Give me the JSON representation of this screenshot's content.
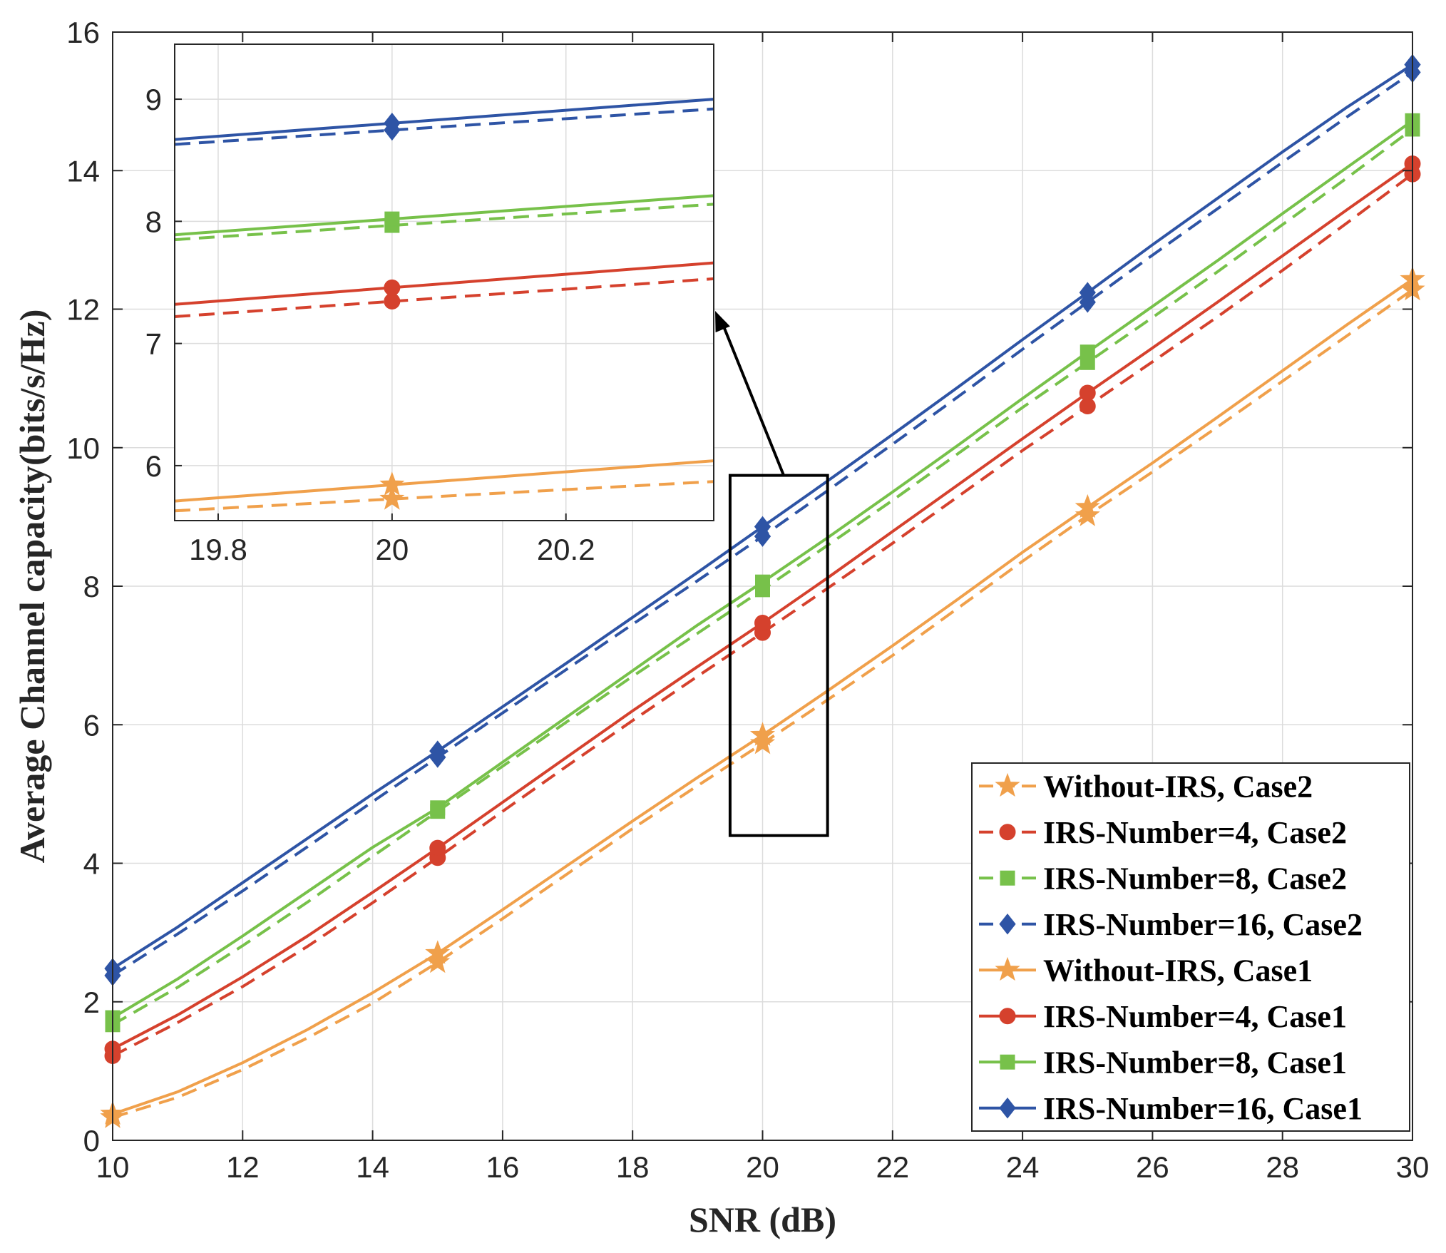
{
  "chart_data": {
    "type": "line",
    "title": "",
    "xlabel": "SNR (dB)",
    "ylabel": "Average Channel capacity(bits/s/Hz)",
    "xlim": [
      10,
      30
    ],
    "ylim": [
      0,
      16
    ],
    "xticks": [
      "10",
      "12",
      "14",
      "16",
      "18",
      "20",
      "22",
      "24",
      "26",
      "28",
      "30"
    ],
    "yticks": [
      "0",
      "2",
      "4",
      "6",
      "8",
      "10",
      "12",
      "14",
      "16"
    ],
    "grid": true,
    "legend_position": "bottom-right",
    "x": [
      10,
      11,
      12,
      13,
      14,
      15,
      16,
      17,
      18,
      19,
      20,
      21,
      22,
      23,
      24,
      25,
      26,
      27,
      28,
      29,
      30
    ],
    "marker_x": [
      10,
      15,
      20,
      25,
      30
    ],
    "series": [
      {
        "name": "Without-IRS, Case2",
        "style": "dashed",
        "marker": "star",
        "color": "#F0A04B",
        "values": [
          0.33,
          0.62,
          1.02,
          1.48,
          1.98,
          2.57,
          3.2,
          3.85,
          4.5,
          5.12,
          5.73,
          6.36,
          7.0,
          7.68,
          8.36,
          9.02,
          9.65,
          10.3,
          10.96,
          11.62,
          12.28
        ]
      },
      {
        "name": "IRS-Number=4, Case2",
        "style": "dashed",
        "marker": "circle",
        "color": "#D5412D",
        "values": [
          1.22,
          1.7,
          2.22,
          2.8,
          3.43,
          4.08,
          4.75,
          5.41,
          6.06,
          6.7,
          7.33,
          7.97,
          8.62,
          9.29,
          9.96,
          10.6,
          11.24,
          11.89,
          12.56,
          13.25,
          13.95
        ]
      },
      {
        "name": "IRS-Number=8, Case2",
        "style": "dashed",
        "marker": "square",
        "color": "#77C14A",
        "values": [
          1.67,
          2.21,
          2.81,
          3.44,
          4.1,
          4.75,
          5.4,
          6.05,
          6.7,
          7.32,
          7.95,
          8.59,
          9.24,
          9.91,
          10.58,
          11.23,
          11.88,
          12.54,
          13.22,
          13.9,
          14.6
        ]
      },
      {
        "name": "IRS-Number=16, Case2",
        "style": "dashed",
        "marker": "diamond",
        "color": "#2E54A5",
        "values": [
          2.38,
          2.98,
          3.6,
          4.24,
          4.89,
          5.53,
          6.17,
          6.81,
          7.45,
          8.08,
          8.72,
          9.38,
          10.05,
          10.73,
          11.42,
          12.1,
          12.78,
          13.45,
          14.12,
          14.78,
          15.42
        ]
      },
      {
        "name": "Without-IRS, Case1",
        "style": "solid",
        "marker": "star",
        "color": "#F0A04B",
        "values": [
          0.38,
          0.7,
          1.12,
          1.6,
          2.13,
          2.7,
          3.33,
          3.97,
          4.61,
          5.24,
          5.85,
          6.49,
          7.14,
          7.81,
          8.49,
          9.14,
          9.78,
          10.44,
          11.11,
          11.78,
          12.43
        ]
      },
      {
        "name": "IRS-Number=4, Case1",
        "style": "solid",
        "marker": "circle",
        "color": "#D5412D",
        "values": [
          1.32,
          1.81,
          2.36,
          2.95,
          3.58,
          4.22,
          4.88,
          5.54,
          6.2,
          6.84,
          7.47,
          8.12,
          8.79,
          9.46,
          10.13,
          10.79,
          11.44,
          12.1,
          12.77,
          13.44,
          14.1
        ]
      },
      {
        "name": "IRS-Number=8, Case1",
        "style": "solid",
        "marker": "square",
        "color": "#77C14A",
        "values": [
          1.77,
          2.33,
          2.95,
          3.59,
          4.23,
          4.8,
          5.46,
          6.12,
          6.78,
          7.44,
          8.06,
          8.7,
          9.36,
          10.03,
          10.71,
          11.38,
          12.04,
          12.7,
          13.38,
          14.05,
          14.72
        ]
      },
      {
        "name": "IRS-Number=16, Case1",
        "style": "solid",
        "marker": "diamond",
        "color": "#2E54A5",
        "values": [
          2.48,
          3.08,
          3.72,
          4.36,
          5.0,
          5.62,
          6.26,
          6.9,
          7.55,
          8.2,
          8.86,
          9.52,
          10.19,
          10.87,
          11.56,
          12.24,
          12.93,
          13.6,
          14.27,
          14.92,
          15.53
        ]
      }
    ],
    "inset": {
      "xlim": [
        19.75,
        20.37
      ],
      "ylim": [
        5.55,
        9.45
      ],
      "xticks": [
        "19.8",
        "20",
        "20.2"
      ],
      "yticks": [
        "6",
        "7",
        "8",
        "9"
      ],
      "marker_x": 20,
      "series": [
        {
          "name": "Without-IRS, Case2",
          "style": "dashed",
          "marker": "star",
          "color": "#F0A04B",
          "x": [
            19.75,
            20.37
          ],
          "values": [
            5.63,
            5.87
          ]
        },
        {
          "name": "IRS-Number=4, Case2",
          "style": "dashed",
          "marker": "circle",
          "color": "#D5412D",
          "x": [
            19.75,
            20.37
          ],
          "values": [
            7.22,
            7.53
          ]
        },
        {
          "name": "IRS-Number=8, Case2",
          "style": "dashed",
          "marker": "square",
          "color": "#77C14A",
          "x": [
            19.75,
            20.37
          ],
          "values": [
            7.85,
            8.14
          ]
        },
        {
          "name": "IRS-Number=16, Case2",
          "style": "dashed",
          "marker": "diamond",
          "color": "#2E54A5",
          "x": [
            19.75,
            20.37
          ],
          "values": [
            8.63,
            8.92
          ]
        },
        {
          "name": "Without-IRS, Case1",
          "style": "solid",
          "marker": "star",
          "color": "#F0A04B",
          "x": [
            19.75,
            20.37
          ],
          "values": [
            5.71,
            6.04
          ]
        },
        {
          "name": "IRS-Number=4, Case1",
          "style": "solid",
          "marker": "circle",
          "color": "#D5412D",
          "x": [
            19.75,
            20.37
          ],
          "values": [
            7.32,
            7.66
          ]
        },
        {
          "name": "IRS-Number=8, Case1",
          "style": "solid",
          "marker": "square",
          "color": "#77C14A",
          "x": [
            19.75,
            20.37
          ],
          "values": [
            7.89,
            8.21
          ]
        },
        {
          "name": "IRS-Number=16, Case1",
          "style": "solid",
          "marker": "diamond",
          "color": "#2E54A5",
          "x": [
            19.75,
            20.37
          ],
          "values": [
            8.67,
            9.0
          ]
        }
      ]
    },
    "zoom_box": {
      "x_range": [
        19.5,
        21.0
      ],
      "y_range": [
        4.4,
        9.6
      ]
    }
  }
}
